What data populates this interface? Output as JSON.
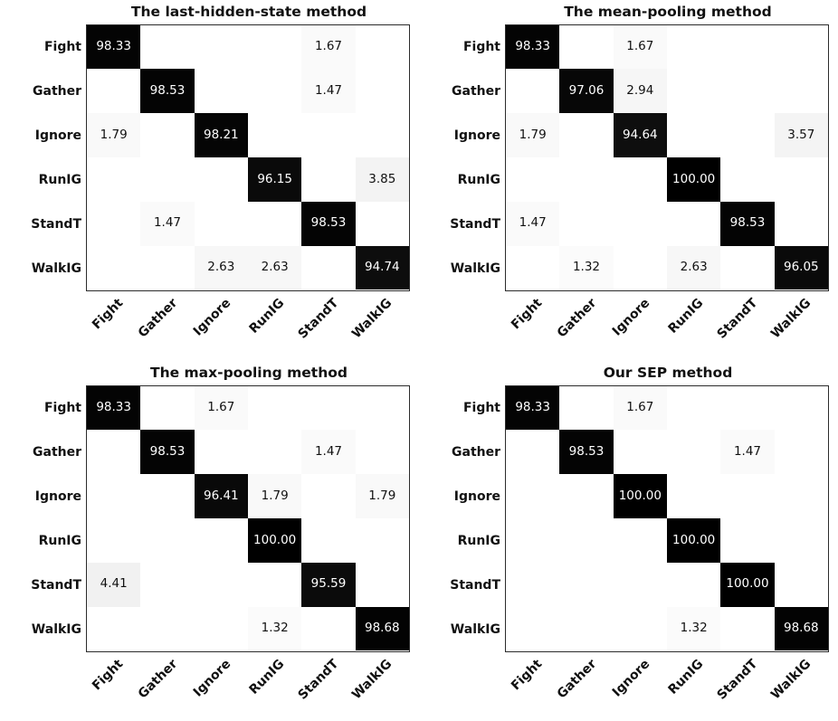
{
  "categories": [
    "Fight",
    "Gather",
    "Ignore",
    "RunIG",
    "StandT",
    "WalkIG"
  ],
  "colors": {
    "background": "#ffffff",
    "cell_dark": "#000000",
    "cell_light": "#f7f7f7",
    "text": "#111111",
    "text_on_dark": "#ffffff",
    "axis_border": "#2b2b2b"
  },
  "chart_data": [
    {
      "type": "heatmap",
      "title": "The last-hidden-state method",
      "x_categories": [
        "Fight",
        "Gather",
        "Ignore",
        "RunIG",
        "StandT",
        "WalkIG"
      ],
      "y_categories": [
        "Fight",
        "Gather",
        "Ignore",
        "RunIG",
        "StandT",
        "WalkIG"
      ],
      "matrix": [
        [
          98.33,
          0,
          0,
          0,
          1.67,
          0
        ],
        [
          0,
          98.53,
          0,
          0,
          1.47,
          0
        ],
        [
          1.79,
          0,
          98.21,
          0,
          0,
          0
        ],
        [
          0,
          0,
          0,
          96.15,
          0,
          3.85
        ],
        [
          0,
          1.47,
          0,
          0,
          98.53,
          0
        ],
        [
          0,
          0,
          2.63,
          2.63,
          0,
          94.74
        ]
      ],
      "value_range": [
        0,
        100
      ],
      "colormap": "greys-white-to-black",
      "blank_cells_are_zero": true,
      "cell_label_decimals": 2,
      "x_tick_rotation_deg": 45,
      "grid": false,
      "legend": "none"
    },
    {
      "type": "heatmap",
      "title": "The mean-pooling method",
      "x_categories": [
        "Fight",
        "Gather",
        "Ignore",
        "RunIG",
        "StandT",
        "WalkIG"
      ],
      "y_categories": [
        "Fight",
        "Gather",
        "Ignore",
        "RunIG",
        "StandT",
        "WalkIG"
      ],
      "matrix": [
        [
          98.33,
          0,
          1.67,
          0,
          0,
          0
        ],
        [
          0,
          97.06,
          2.94,
          0,
          0,
          0
        ],
        [
          1.79,
          0,
          94.64,
          0,
          0,
          3.57
        ],
        [
          0,
          0,
          0,
          100.0,
          0,
          0
        ],
        [
          1.47,
          0,
          0,
          0,
          98.53,
          0
        ],
        [
          0,
          1.32,
          0,
          2.63,
          0,
          96.05
        ]
      ],
      "value_range": [
        0,
        100
      ],
      "colormap": "greys-white-to-black",
      "blank_cells_are_zero": true,
      "cell_label_decimals": 2,
      "x_tick_rotation_deg": 45,
      "grid": false,
      "legend": "none"
    },
    {
      "type": "heatmap",
      "title": "The max-pooling method",
      "x_categories": [
        "Fight",
        "Gather",
        "Ignore",
        "RunIG",
        "StandT",
        "WalkIG"
      ],
      "y_categories": [
        "Fight",
        "Gather",
        "Ignore",
        "RunIG",
        "StandT",
        "WalkIG"
      ],
      "matrix": [
        [
          98.33,
          0,
          1.67,
          0,
          0,
          0
        ],
        [
          0,
          98.53,
          0,
          0,
          1.47,
          0
        ],
        [
          0,
          0,
          96.41,
          1.79,
          0,
          1.79
        ],
        [
          0,
          0,
          0,
          100.0,
          0,
          0
        ],
        [
          4.41,
          0,
          0,
          0,
          95.59,
          0
        ],
        [
          0,
          0,
          0,
          1.32,
          0,
          98.68
        ]
      ],
      "value_range": [
        0,
        100
      ],
      "colormap": "greys-white-to-black",
      "blank_cells_are_zero": true,
      "cell_label_decimals": 2,
      "x_tick_rotation_deg": 45,
      "grid": false,
      "legend": "none"
    },
    {
      "type": "heatmap",
      "title": "Our SEP method",
      "x_categories": [
        "Fight",
        "Gather",
        "Ignore",
        "RunIG",
        "StandT",
        "WalkIG"
      ],
      "y_categories": [
        "Fight",
        "Gather",
        "Ignore",
        "RunIG",
        "StandT",
        "WalkIG"
      ],
      "matrix": [
        [
          98.33,
          0,
          1.67,
          0,
          0,
          0
        ],
        [
          0,
          98.53,
          0,
          0,
          1.47,
          0
        ],
        [
          0,
          0,
          100.0,
          0,
          0,
          0
        ],
        [
          0,
          0,
          0,
          100.0,
          0,
          0
        ],
        [
          0,
          0,
          0,
          0,
          100.0,
          0
        ],
        [
          0,
          0,
          0,
          1.32,
          0,
          98.68
        ]
      ],
      "value_range": [
        0,
        100
      ],
      "colormap": "greys-white-to-black",
      "blank_cells_are_zero": true,
      "cell_label_decimals": 2,
      "x_tick_rotation_deg": 45,
      "grid": false,
      "legend": "none"
    }
  ]
}
